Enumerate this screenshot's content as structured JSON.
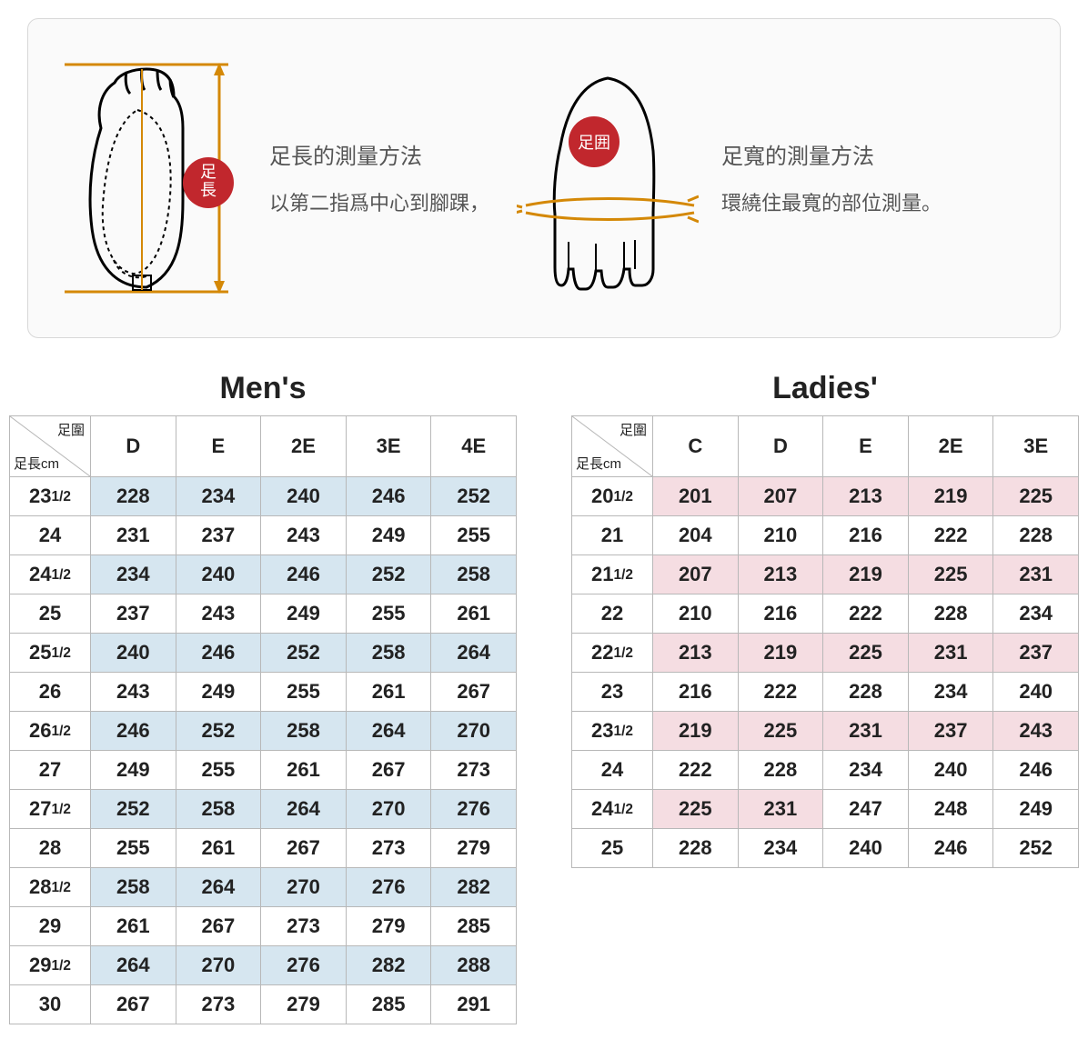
{
  "guide": {
    "lengthBadge": "足長",
    "lengthTitle": "足長的測量方法",
    "lengthDesc": "以第二指爲中心到腳踝，",
    "widthBadge": "足囲",
    "widthTitle": "足寬的測量方法",
    "widthDesc": "環繞住最寬的部位測量。"
  },
  "cornerTop": "足圍",
  "cornerBottom": "足長cm",
  "mens": {
    "title": "Men's",
    "columns": [
      "D",
      "E",
      "2E",
      "3E",
      "4E"
    ],
    "rows": [
      {
        "len": "23½",
        "v": [
          228,
          234,
          240,
          246,
          252
        ]
      },
      {
        "len": "24",
        "v": [
          231,
          237,
          243,
          249,
          255
        ]
      },
      {
        "len": "24½",
        "v": [
          234,
          240,
          246,
          252,
          258
        ]
      },
      {
        "len": "25",
        "v": [
          237,
          243,
          249,
          255,
          261
        ]
      },
      {
        "len": "25½",
        "v": [
          240,
          246,
          252,
          258,
          264
        ]
      },
      {
        "len": "26",
        "v": [
          243,
          249,
          255,
          261,
          267
        ]
      },
      {
        "len": "26½",
        "v": [
          246,
          252,
          258,
          264,
          270
        ]
      },
      {
        "len": "27",
        "v": [
          249,
          255,
          261,
          267,
          273
        ]
      },
      {
        "len": "27½",
        "v": [
          252,
          258,
          264,
          270,
          276
        ]
      },
      {
        "len": "28",
        "v": [
          255,
          261,
          267,
          273,
          279
        ]
      },
      {
        "len": "28½",
        "v": [
          258,
          264,
          270,
          276,
          282
        ]
      },
      {
        "len": "29",
        "v": [
          261,
          267,
          273,
          279,
          285
        ]
      },
      {
        "len": "29½",
        "v": [
          264,
          270,
          276,
          282,
          288
        ]
      },
      {
        "len": "30",
        "v": [
          267,
          273,
          279,
          285,
          291
        ]
      }
    ]
  },
  "ladies": {
    "title": "Ladies'",
    "columns": [
      "C",
      "D",
      "E",
      "2E",
      "3E"
    ],
    "rows": [
      {
        "len": "20½",
        "v": [
          201,
          207,
          213,
          219,
          225
        ]
      },
      {
        "len": "21",
        "v": [
          204,
          210,
          216,
          222,
          228
        ]
      },
      {
        "len": "21½",
        "v": [
          207,
          213,
          219,
          225,
          231
        ]
      },
      {
        "len": "22",
        "v": [
          210,
          216,
          222,
          228,
          234
        ]
      },
      {
        "len": "22½",
        "v": [
          213,
          219,
          225,
          231,
          237
        ]
      },
      {
        "len": "23",
        "v": [
          216,
          222,
          228,
          234,
          240
        ]
      },
      {
        "len": "23½",
        "v": [
          219,
          225,
          231,
          237,
          243
        ]
      },
      {
        "len": "24",
        "v": [
          222,
          228,
          234,
          240,
          246
        ]
      },
      {
        "len": "24½",
        "v": [
          225,
          231,
          247,
          248,
          249
        ],
        "override": [
          2,
          3,
          4
        ]
      },
      {
        "len": "25",
        "v": [
          228,
          234,
          240,
          246,
          252
        ]
      }
    ]
  },
  "colors": {
    "mensStripe": "#d6e6f0",
    "ladiesStripe": "#f5dde2",
    "border": "#b8b8b8",
    "badge": "#c1272d",
    "arrow": "#d48806"
  }
}
